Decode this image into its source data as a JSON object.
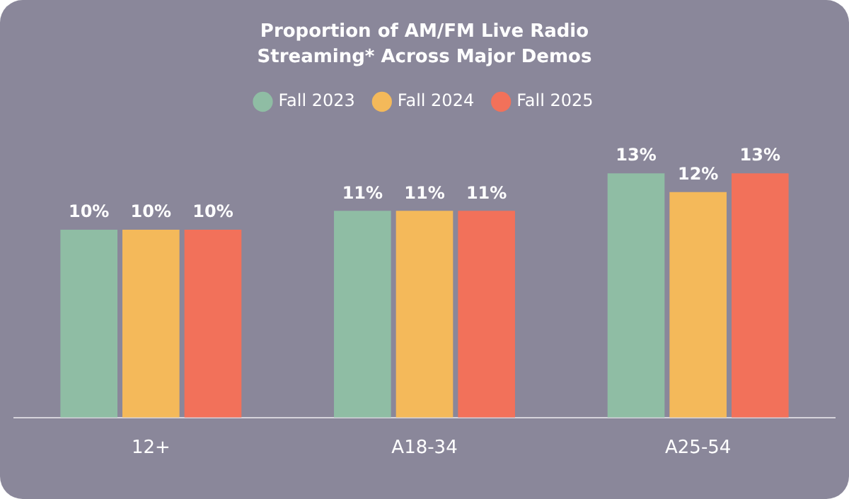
{
  "chart_data": {
    "type": "bar",
    "title": "Proportion of AM/FM Live Radio Streaming* Across Major Demos",
    "categories": [
      "12+",
      "A18-34",
      "A25-54"
    ],
    "series": [
      {
        "name": "Fall 2023",
        "color": "#8fbda4",
        "values": [
          10,
          11,
          13
        ],
        "value_labels": [
          "10%",
          "11%",
          "13%"
        ]
      },
      {
        "name": "Fall 2024",
        "color": "#f4b95a",
        "values": [
          10,
          11,
          12
        ],
        "value_labels": [
          "10%",
          "11%",
          "12%"
        ]
      },
      {
        "name": "Fall 2025",
        "color": "#f2715a",
        "values": [
          10,
          11,
          13
        ],
        "value_labels": [
          "10%",
          "11%",
          "13%"
        ]
      }
    ],
    "legend": "top",
    "grid": false,
    "tick_labels": "x"
  }
}
